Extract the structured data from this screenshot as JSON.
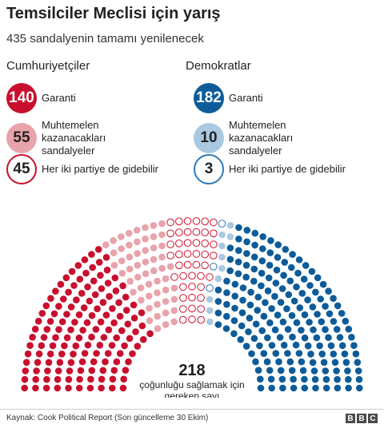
{
  "title": "Temsilciler Meclisi için yarış",
  "subtitle": "435 sandalyenin tamamı yenilenecek",
  "colors": {
    "rep_solid": "#c8102e",
    "rep_likely": "#e8a3ab",
    "rep_lean": "#d0102e",
    "dem_solid": "#0d5c99",
    "dem_likely": "#a9c9e2",
    "dem_lean": "#2d7ab8"
  },
  "republicans": {
    "name": "Cumhuriyetçiler",
    "items": [
      {
        "value": "140",
        "label": "Garanti",
        "style": "solid"
      },
      {
        "value": "55",
        "label": "Muhtemelen kazanacakları sandalyeler",
        "style": "likely"
      },
      {
        "value": "45",
        "label": "Her iki partiye de gidebilir",
        "style": "lean"
      }
    ]
  },
  "democrats": {
    "name": "Demokratlar",
    "items": [
      {
        "value": "182",
        "label": "Garanti",
        "style": "solid"
      },
      {
        "value": "10",
        "label": "Muhtemelen kazanacakları sandalyeler",
        "style": "likely"
      },
      {
        "value": "3",
        "label": "Her iki partiye de gidebilir",
        "style": "lean"
      }
    ]
  },
  "majority": {
    "value": "218",
    "label_line1": "çoğunluğu sağlamak için",
    "label_line2": "gereken sayı"
  },
  "source": "Kaynak: Cook Political Report (Son güncelleme 30 Ekim)",
  "logo": [
    "B",
    "B",
    "C"
  ],
  "chart_data": {
    "type": "hemicycle",
    "total": 435,
    "series": [
      {
        "name": "Cumhuriyetçiler Garanti",
        "value": 140,
        "color": "#c8102e",
        "style": "filled"
      },
      {
        "name": "Cumhuriyetçiler Muhtemelen kazanacakları sandalyeler",
        "value": 55,
        "color": "#e8a3ab",
        "style": "filled"
      },
      {
        "name": "Cumhuriyetçiler Her iki partiye de gidebilir",
        "value": 45,
        "color": "#d0102e",
        "style": "outline"
      },
      {
        "name": "Demokratlar Her iki partiye de gidebilir",
        "value": 3,
        "color": "#2d7ab8",
        "style": "outline"
      },
      {
        "name": "Demokratlar Muhtemelen kazanacakları sandalyeler",
        "value": 10,
        "color": "#a9c9e2",
        "style": "filled"
      },
      {
        "name": "Demokratlar Garanti",
        "value": 182,
        "color": "#0d5c99",
        "style": "filled"
      }
    ],
    "majority": 218
  }
}
